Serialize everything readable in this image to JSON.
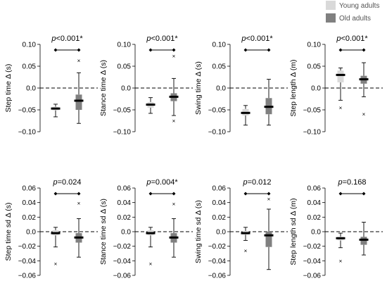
{
  "legend": [
    {
      "label": "Young adults",
      "color": "#d9d9d9"
    },
    {
      "label": "Old adults",
      "color": "#808080"
    }
  ],
  "chart_data": [
    {
      "type": "box",
      "ylabel": "Step time Δ (s)",
      "ylim": [
        -0.1,
        0.1
      ],
      "yticks": [
        -0.1,
        -0.05,
        0.0,
        0.05,
        0.1
      ],
      "tick_labels": [
        "−0.10",
        "−0.05",
        "0.0",
        "0.05",
        "0.10"
      ],
      "pvalue": {
        "prefix": "p",
        "text": "<0.001*"
      },
      "reference_line": 0,
      "series": [
        {
          "group": "young",
          "min": -0.066,
          "q1": -0.051,
          "median": -0.047,
          "q3": -0.043,
          "max": -0.037,
          "outliers": []
        },
        {
          "group": "old",
          "min": -0.081,
          "q1": -0.05,
          "median": -0.029,
          "q3": -0.015,
          "max": 0.035,
          "outliers": [
            0.063
          ]
        }
      ]
    },
    {
      "type": "box",
      "ylabel": "Stance time Δ (s)",
      "ylim": [
        -0.1,
        0.1
      ],
      "yticks": [
        -0.1,
        -0.05,
        0.0,
        0.05,
        0.1
      ],
      "tick_labels": [
        "−0.10",
        "−0.05",
        "0.0",
        "0.05",
        "0.10"
      ],
      "pvalue": {
        "prefix": "p",
        "text": "<0.001*"
      },
      "reference_line": 0,
      "series": [
        {
          "group": "young",
          "min": -0.058,
          "q1": -0.045,
          "median": -0.038,
          "q3": -0.032,
          "max": -0.022,
          "outliers": []
        },
        {
          "group": "old",
          "min": -0.063,
          "q1": -0.03,
          "median": -0.02,
          "q3": -0.012,
          "max": 0.022,
          "outliers": [
            -0.075,
            0.073
          ]
        }
      ]
    },
    {
      "type": "box",
      "ylabel": "Swing time Δ (s)",
      "ylim": [
        -0.1,
        0.1
      ],
      "yticks": [
        -0.1,
        -0.05,
        0.0,
        0.05,
        0.1
      ],
      "tick_labels": [
        "−0.10",
        "−0.05",
        "0.0",
        "0.05",
        "0.10"
      ],
      "pvalue": {
        "prefix": "p",
        "text": "<0.001*"
      },
      "reference_line": 0,
      "series": [
        {
          "group": "young",
          "min": -0.085,
          "q1": -0.063,
          "median": -0.057,
          "q3": -0.048,
          "max": -0.04,
          "outliers": []
        },
        {
          "group": "old",
          "min": -0.085,
          "q1": -0.06,
          "median": -0.043,
          "q3": -0.023,
          "max": 0.02,
          "outliers": []
        }
      ]
    },
    {
      "type": "box",
      "ylabel": "Step length Δ (m)",
      "ylim": [
        -0.1,
        0.1
      ],
      "yticks": [
        -0.1,
        -0.05,
        0.0,
        0.05,
        0.1
      ],
      "tick_labels": [
        "−0.10",
        "−0.05",
        "0.0",
        "0.05",
        "0.10"
      ],
      "pvalue": {
        "prefix": "p",
        "text": "<0.001*"
      },
      "reference_line": 0,
      "series": [
        {
          "group": "young",
          "min": -0.028,
          "q1": 0.013,
          "median": 0.03,
          "q3": 0.04,
          "max": 0.046,
          "outliers": [
            -0.045
          ]
        },
        {
          "group": "old",
          "min": -0.02,
          "q1": 0.01,
          "median": 0.02,
          "q3": 0.028,
          "max": 0.058,
          "outliers": [
            -0.06
          ]
        }
      ]
    },
    {
      "type": "box",
      "ylabel": "Step time sd Δ (s)",
      "ylim": [
        -0.06,
        0.06
      ],
      "yticks": [
        -0.06,
        -0.04,
        -0.02,
        0.0,
        0.02,
        0.04,
        0.06
      ],
      "tick_labels": [
        "−0.06",
        "−0.04",
        "−0.02",
        "0.0",
        "0.02",
        "0.04",
        "0.06"
      ],
      "pvalue": {
        "prefix": "p",
        "text": "=0.024"
      },
      "reference_line": 0,
      "series": [
        {
          "group": "young",
          "min": -0.021,
          "q1": -0.005,
          "median": -0.002,
          "q3": 0.002,
          "max": 0.006,
          "outliers": [
            -0.044
          ]
        },
        {
          "group": "old",
          "min": -0.035,
          "q1": -0.015,
          "median": -0.008,
          "q3": -0.002,
          "max": 0.018,
          "outliers": [
            0.039
          ]
        }
      ]
    },
    {
      "type": "box",
      "ylabel": "Stance time sd Δ (s)",
      "ylim": [
        -0.06,
        0.06
      ],
      "yticks": [
        -0.06,
        -0.04,
        -0.02,
        0.0,
        0.02,
        0.04,
        0.06
      ],
      "tick_labels": [
        "−0.06",
        "−0.04",
        "−0.02",
        "0.0",
        "0.02",
        "0.04",
        "0.06"
      ],
      "pvalue": {
        "prefix": "p",
        "text": "=0.004*"
      },
      "reference_line": 0,
      "series": [
        {
          "group": "young",
          "min": -0.021,
          "q1": -0.005,
          "median": -0.002,
          "q3": 0.002,
          "max": 0.006,
          "outliers": [
            -0.044
          ]
        },
        {
          "group": "old",
          "min": -0.035,
          "q1": -0.015,
          "median": -0.008,
          "q3": -0.002,
          "max": 0.018,
          "outliers": [
            0.038
          ]
        }
      ]
    },
    {
      "type": "box",
      "ylabel": "Swing time sd Δ (s)",
      "ylim": [
        -0.06,
        0.06
      ],
      "yticks": [
        -0.06,
        -0.04,
        -0.02,
        0.0,
        0.02,
        0.04,
        0.06
      ],
      "tick_labels": [
        "−0.06",
        "−0.04",
        "−0.02",
        "0.0",
        "0.02",
        "0.04",
        "0.06"
      ],
      "pvalue": {
        "prefix": "p",
        "text": "=0.012"
      },
      "reference_line": 0,
      "series": [
        {
          "group": "young",
          "min": -0.012,
          "q1": -0.004,
          "median": -0.002,
          "q3": 0.001,
          "max": 0.006,
          "outliers": [
            -0.026
          ]
        },
        {
          "group": "old",
          "min": -0.052,
          "q1": -0.021,
          "median": -0.005,
          "q3": 0.0,
          "max": 0.031,
          "outliers": [
            0.045
          ]
        }
      ]
    },
    {
      "type": "box",
      "ylabel": "Step length sd Δ (m)",
      "ylim": [
        -0.06,
        0.06
      ],
      "yticks": [
        -0.06,
        -0.04,
        -0.02,
        0.0,
        0.02,
        0.04,
        0.06
      ],
      "tick_labels": [
        "−0.06",
        "−0.04",
        "−0.02",
        "0.0",
        "0.02",
        "0.04",
        "0.06"
      ],
      "pvalue": {
        "prefix": "p",
        "text": "=0.168"
      },
      "reference_line": 0,
      "series": [
        {
          "group": "young",
          "min": -0.022,
          "q1": -0.012,
          "median": -0.009,
          "q3": -0.007,
          "max": -0.002,
          "outliers": [
            -0.04
          ]
        },
        {
          "group": "old",
          "min": -0.032,
          "q1": -0.018,
          "median": -0.011,
          "q3": -0.007,
          "max": 0.013,
          "outliers": []
        }
      ]
    }
  ]
}
